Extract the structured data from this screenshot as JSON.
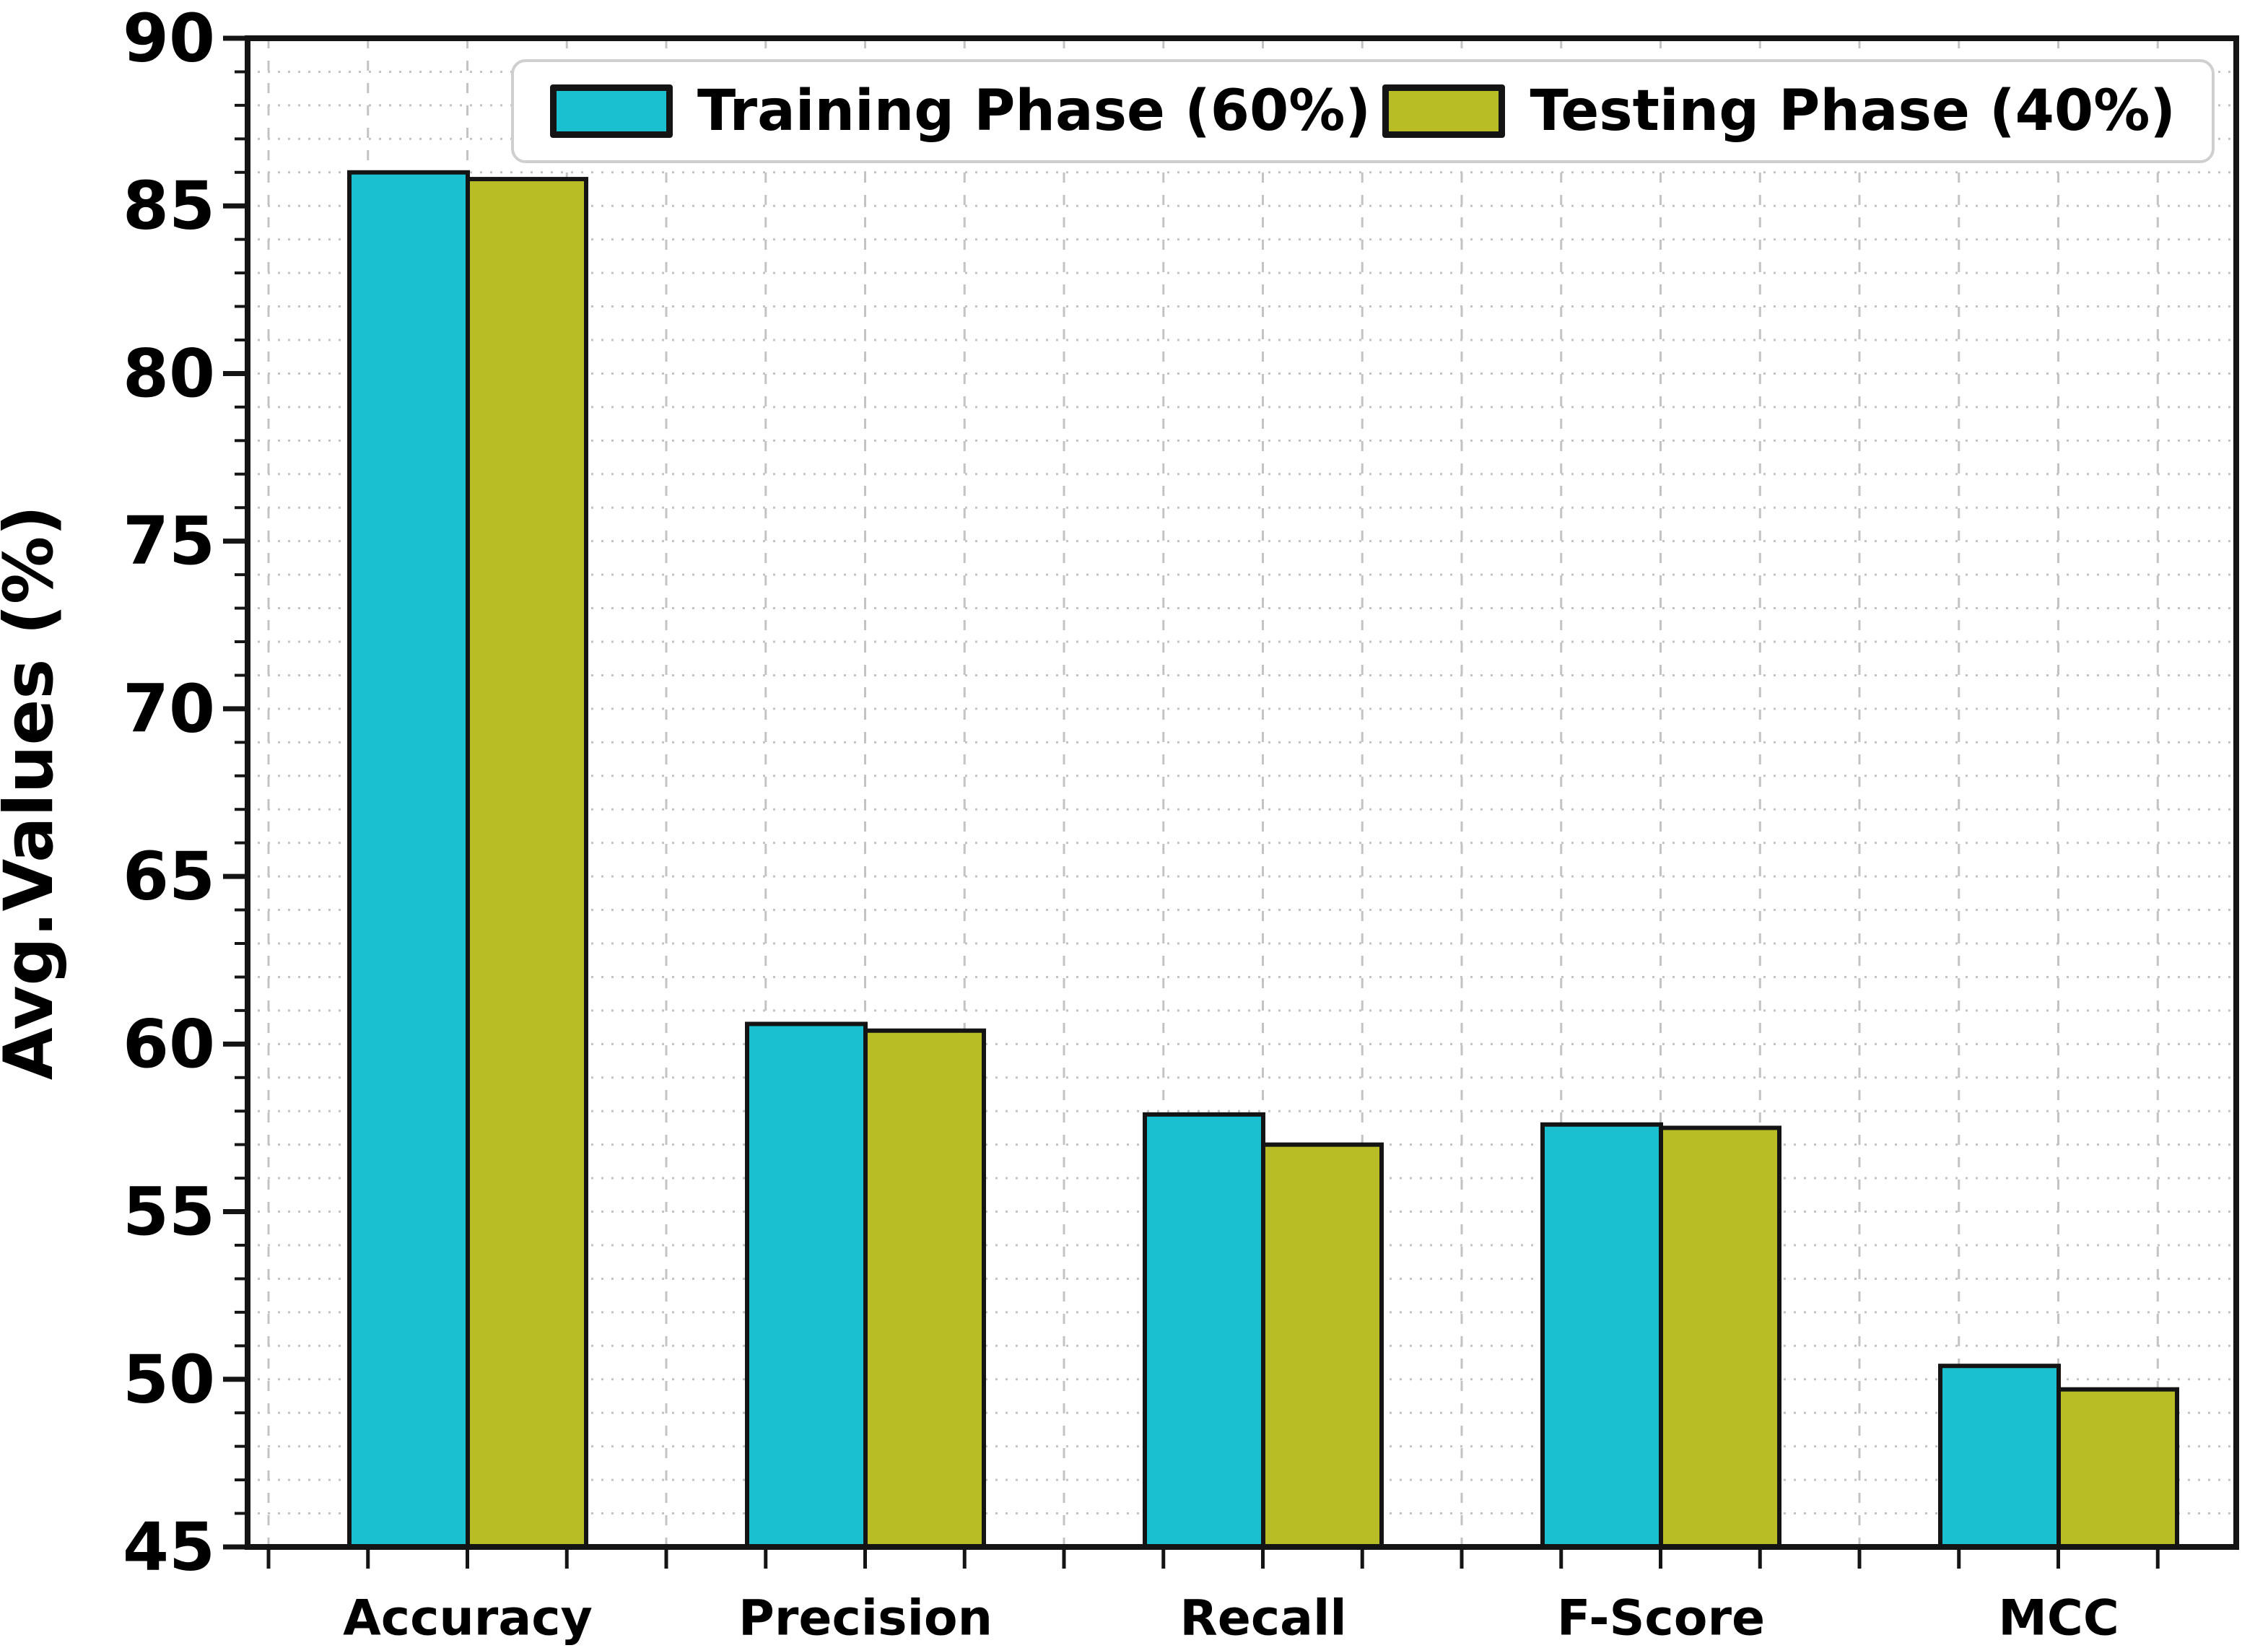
{
  "figure": {
    "background": "#ffffff",
    "plot_background": "#ffffff",
    "spine_color": "#141414",
    "grid_color": "#c3c3c3"
  },
  "chart_data": {
    "type": "bar",
    "title": "",
    "categories": [
      "Accuracy",
      "Precision",
      "Recall",
      "F-Score",
      "MCC"
    ],
    "series": [
      {
        "name": "Training Phase (60%)",
        "color": "#1abfd0",
        "edge_color": "#141414",
        "values": [
          86.0,
          60.6,
          57.9,
          57.6,
          50.4
        ]
      },
      {
        "name": "Testing Phase (40%)",
        "color": "#b9bd25",
        "edge_color": "#141414",
        "values": [
          85.8,
          60.4,
          57.0,
          57.5,
          49.7
        ]
      }
    ],
    "xlabel": "",
    "ylabel": "Avg.Values (%)",
    "ylim": [
      45,
      90
    ],
    "yticks": [
      45,
      50,
      55,
      60,
      65,
      70,
      75,
      80,
      85,
      90
    ],
    "minor_y_step": 1,
    "grid": {
      "vertical_style": "dashed",
      "horizontal_style": "dotted",
      "shown": true
    },
    "legend": {
      "position": "upper center",
      "entries": [
        "Training Phase (60%)",
        "Testing Phase (40%)"
      ]
    }
  }
}
